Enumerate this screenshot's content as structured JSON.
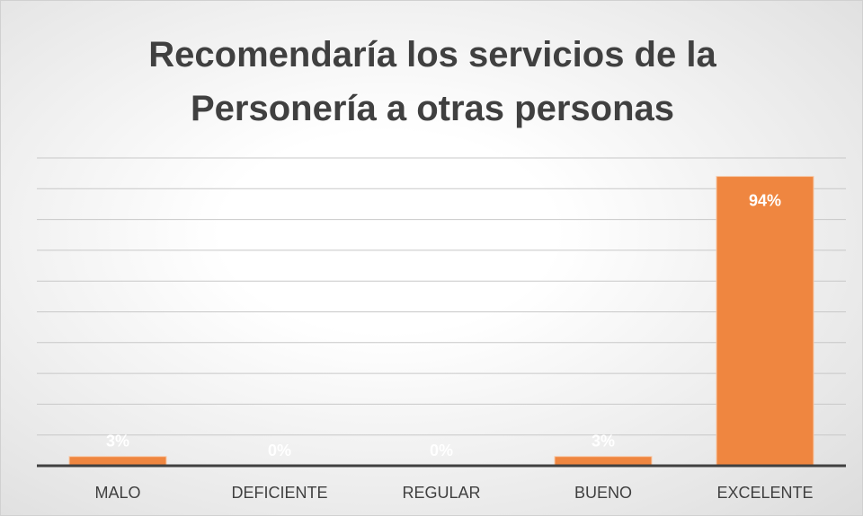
{
  "chart_data": {
    "type": "bar",
    "title": "Recomendaría los servicios de la Personería a otras personas",
    "categories": [
      "MALO",
      "DEFICIENTE",
      "REGULAR",
      "BUENO",
      "EXCELENTE"
    ],
    "values": [
      3,
      0,
      0,
      3,
      94
    ],
    "value_labels": [
      "3%",
      "0%",
      "0%",
      "3%",
      "94%"
    ],
    "color": "#ef8640",
    "ylim": [
      0,
      100
    ],
    "yticks": [
      0,
      10,
      20,
      30,
      40,
      50,
      60,
      70,
      80,
      90,
      100
    ],
    "grid": true
  }
}
